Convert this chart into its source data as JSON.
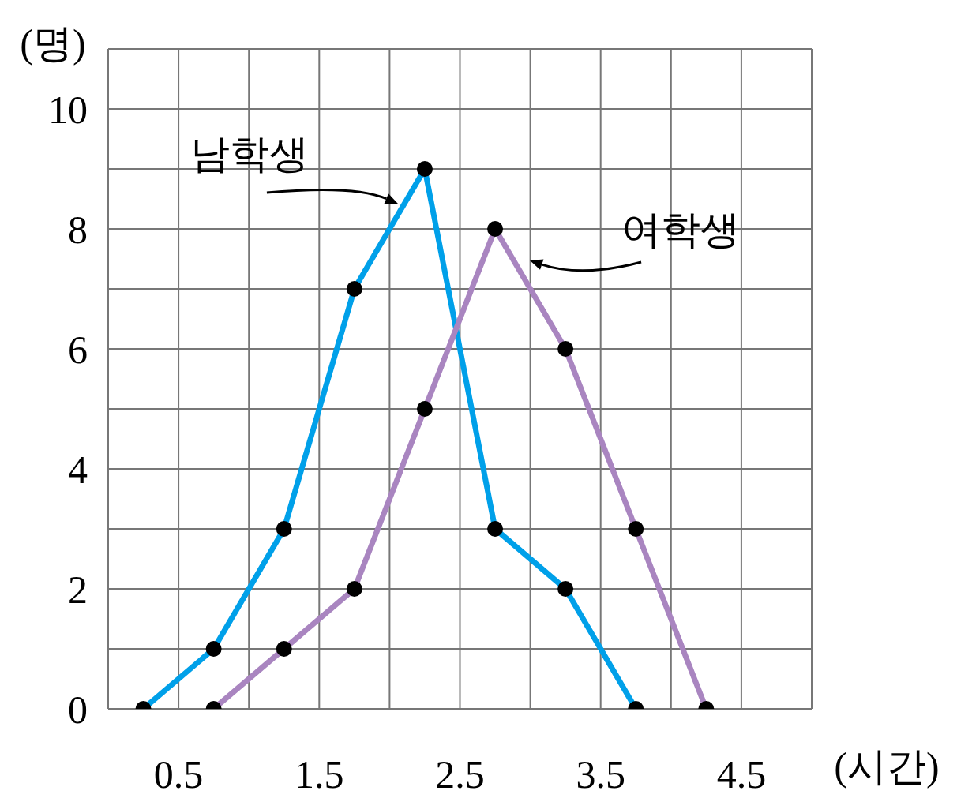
{
  "chart_data": {
    "type": "line",
    "xlabel": "(시간)",
    "ylabel": "(명)",
    "xlim": [
      0,
      5
    ],
    "ylim": [
      0,
      11
    ],
    "xticks": [
      {
        "value": 0,
        "label": null
      },
      0.5,
      {
        "value": 1,
        "label": null
      },
      1.5,
      {
        "value": 2,
        "label": null
      },
      2.5,
      {
        "value": 3,
        "label": null
      },
      3.5,
      {
        "value": 4,
        "label": null
      },
      4.5,
      {
        "value": 5,
        "label": null
      }
    ],
    "yticks": [
      0,
      {
        "value": 1,
        "label": null
      },
      2,
      {
        "value": 3,
        "label": null
      },
      4,
      {
        "value": 5,
        "label": null
      },
      6,
      {
        "value": 7,
        "label": null
      },
      8,
      {
        "value": 9,
        "label": null
      },
      10,
      {
        "value": 11,
        "label": null
      }
    ],
    "x": [
      0.25,
      0.75,
      1.25,
      1.75,
      2.25,
      2.75,
      3.25,
      3.75
    ],
    "series": [
      {
        "name": "남학생",
        "color": "#00a0e9",
        "values": [
          0,
          1,
          3,
          7,
          9,
          3,
          2,
          0
        ]
      },
      {
        "name": "여학생",
        "color": "#a985c0",
        "x": [
          0.75,
          1.25,
          1.75,
          2.25,
          2.75,
          3.25,
          3.75,
          4.25
        ],
        "values": [
          0,
          1,
          2,
          5,
          8,
          6,
          3,
          0
        ]
      }
    ],
    "grid": true,
    "marker": "circle",
    "line_style": "solid"
  }
}
